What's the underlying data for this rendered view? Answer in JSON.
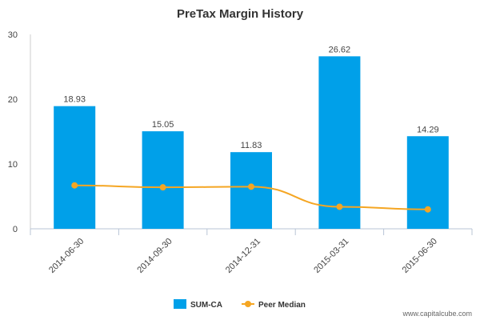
{
  "chart_data": {
    "type": "bar",
    "title": "PreTax Margin History",
    "categories": [
      "2014-06-30",
      "2014-09-30",
      "2014-12-31",
      "2015-03-31",
      "2015-06-30"
    ],
    "series": [
      {
        "name": "SUM-CA",
        "type": "bar",
        "color": "#00a0e9",
        "values": [
          18.93,
          15.05,
          11.83,
          26.62,
          14.29
        ]
      },
      {
        "name": "Peer Median",
        "type": "line",
        "color": "#f5a623",
        "values": [
          6.7,
          6.4,
          6.5,
          3.4,
          3.0
        ]
      }
    ],
    "data_labels": [
      "18.93",
      "15.05",
      "11.83",
      "26.62",
      "14.29"
    ],
    "yticks": [
      "0",
      "10",
      "20",
      "30"
    ],
    "ylim": [
      0,
      30
    ],
    "xlabel": "",
    "ylabel": "",
    "legend": "bottom-center"
  },
  "credit": "www.capitalcube.com"
}
